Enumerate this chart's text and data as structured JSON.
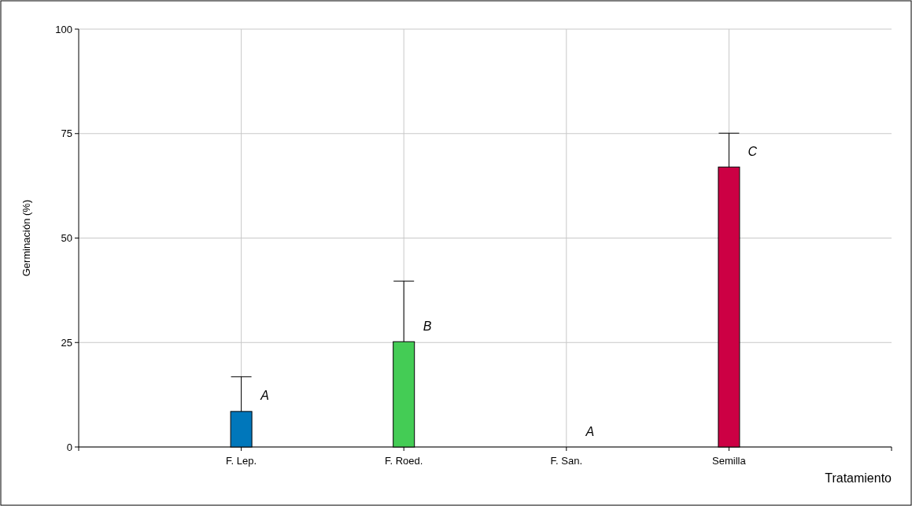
{
  "chart_data": {
    "type": "bar",
    "xlabel": "Tratamiento",
    "ylabel": "Germinación (%)",
    "categories": [
      "F. Lep.",
      "F. Roed.",
      "F. San.",
      "Semilla"
    ],
    "values": [
      8.5,
      25.2,
      0,
      67
    ],
    "colors": [
      "#0077bb",
      "#44cc55",
      "#888888",
      "#cc0044"
    ],
    "errors": [
      [
        8.5,
        16.8
      ],
      [
        25.2,
        39.7
      ],
      null,
      [
        67,
        75.1
      ]
    ],
    "ylim": [
      0,
      100
    ],
    "yticks": [
      0,
      25,
      50,
      75,
      100
    ],
    "grid": true,
    "annotations": [
      {
        "text": "A",
        "x": "F. Lep.",
        "y": 8.5
      },
      {
        "text": "B",
        "x": "F. Roed.",
        "y": 25.2
      },
      {
        "text": "A",
        "x": "F. San.",
        "y": 0
      },
      {
        "text": "C",
        "x": "Semilla",
        "y": 67
      }
    ]
  }
}
